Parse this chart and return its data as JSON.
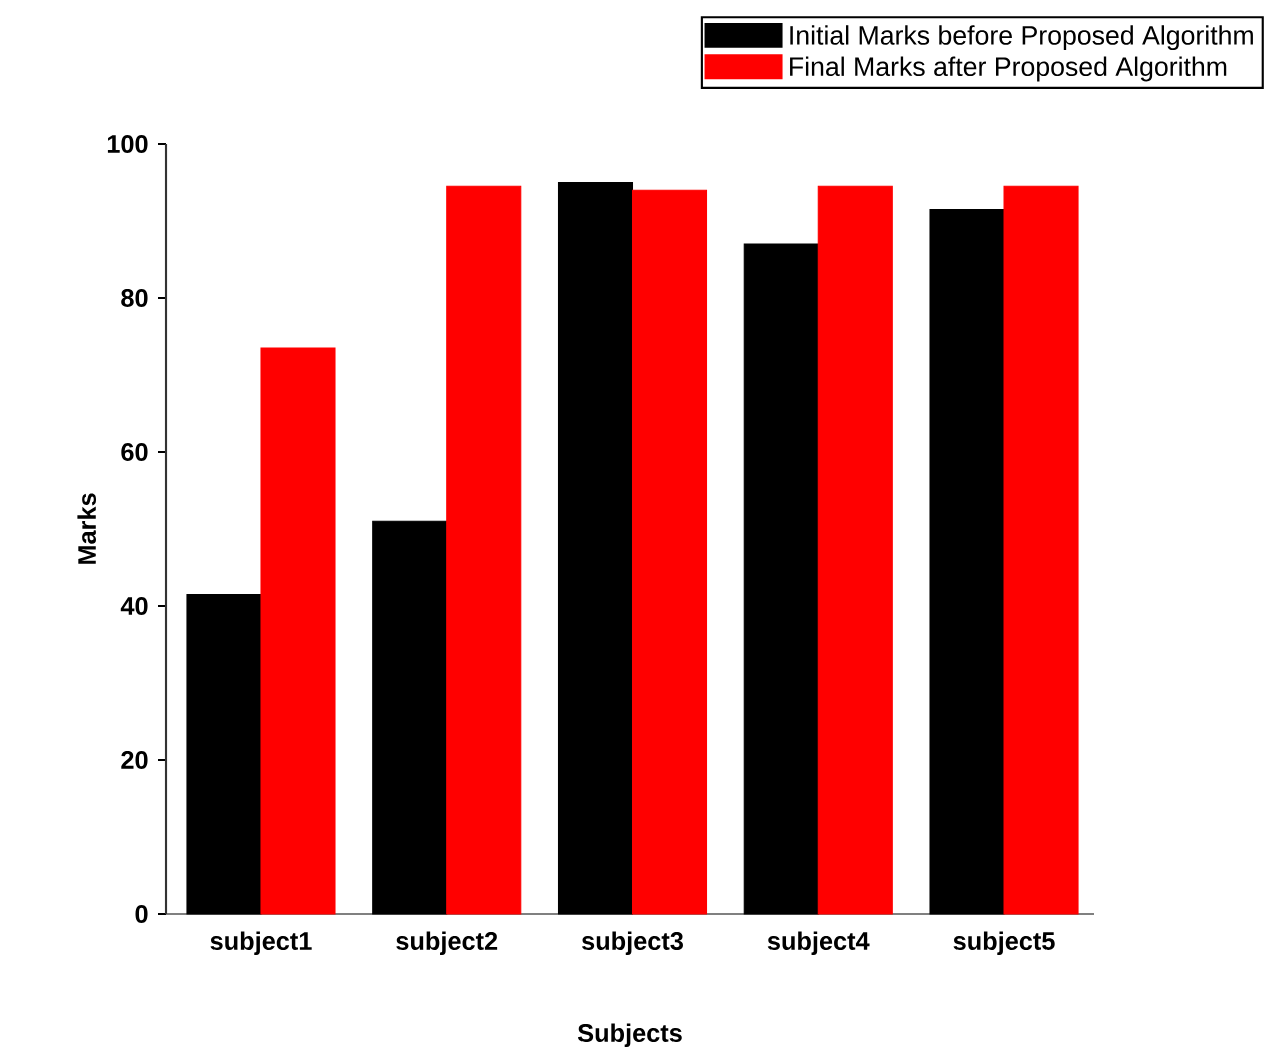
{
  "chart_data": {
    "type": "bar",
    "xlabel": "Subjects",
    "ylabel": "Marks",
    "categories": [
      "subject1",
      "subject2",
      "subject3",
      "subject4",
      "subject5"
    ],
    "series": [
      {
        "name": "Initial Marks before Proposed Algorithm",
        "color": "#000000",
        "values": [
          41.5,
          51,
          95,
          87,
          91.5
        ]
      },
      {
        "name": "Final Marks after Proposed Algorithm",
        "color": "#ff0000",
        "values": [
          73.5,
          94.5,
          94,
          94.5,
          94.5
        ]
      }
    ],
    "ylim": [
      0,
      100
    ],
    "yticks": [
      0,
      20,
      40,
      60,
      80,
      100
    ],
    "legend": "top right"
  }
}
